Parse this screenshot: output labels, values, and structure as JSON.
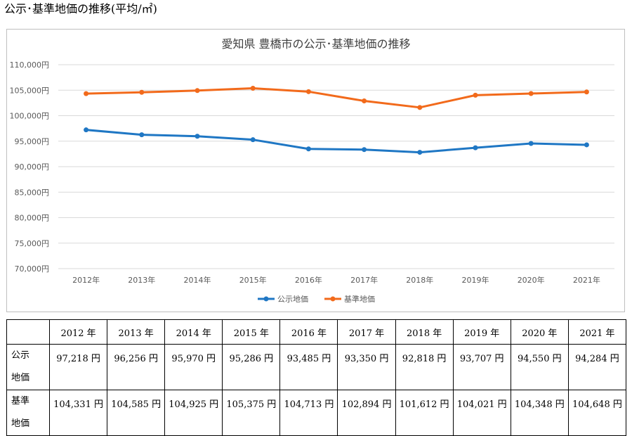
{
  "page_heading": "公示･基準地価の推移(平均/㎡)",
  "chart_data": {
    "type": "line",
    "title": "愛知県 豊橋市の公示･基準地価の推移",
    "categories": [
      "2012年",
      "2013年",
      "2014年",
      "2015年",
      "2016年",
      "2017年",
      "2018年",
      "2019年",
      "2020年",
      "2021年"
    ],
    "y_ticks": [
      "110,000円",
      "105,000円",
      "100,000円",
      "95,000円",
      "90,000円",
      "85,000円",
      "80,000円",
      "75,000円",
      "70,000円"
    ],
    "ylim": [
      70000,
      110000
    ],
    "ytick_step": 5000,
    "grid": true,
    "legend_position": "bottom",
    "series": [
      {
        "name": "公示地価",
        "color": "#1f77c4",
        "values": [
          97218,
          96256,
          95970,
          95286,
          93485,
          93350,
          92818,
          93707,
          94550,
          94284
        ]
      },
      {
        "name": "基準地価",
        "color": "#f26a1b",
        "values": [
          104331,
          104585,
          104925,
          105375,
          104713,
          102894,
          101612,
          104021,
          104348,
          104648
        ]
      }
    ]
  },
  "table": {
    "corner": "",
    "years": [
      "2012 年",
      "2013 年",
      "2014 年",
      "2015 年",
      "2016 年",
      "2017 年",
      "2018 年",
      "2019 年",
      "2020 年",
      "2021 年"
    ],
    "rows": [
      {
        "label_lines": [
          "公示",
          "地価"
        ],
        "values": [
          "97,218 円",
          "96,256 円",
          "95,970 円",
          "95,286 円",
          "93,485 円",
          "93,350 円",
          "92,818 円",
          "93,707 円",
          "94,550 円",
          "94,284 円"
        ]
      },
      {
        "label_lines": [
          "基準",
          "地価"
        ],
        "values": [
          "104,331 円",
          "104,585 円",
          "104,925 円",
          "105,375 円",
          "104,713 円",
          "102,894 円",
          "101,612 円",
          "104,021 円",
          "104,348 円",
          "104,648 円"
        ]
      }
    ]
  }
}
